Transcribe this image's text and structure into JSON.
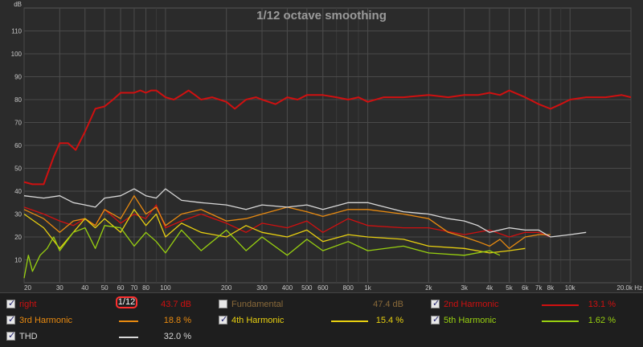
{
  "chart_data": {
    "type": "line",
    "title": "1/12 octave smoothing",
    "ylabel": "dB",
    "x_scale": "log",
    "xlim": [
      20,
      20000
    ],
    "ylim": [
      0,
      120
    ],
    "grid": true,
    "y_ticks": [
      "10",
      "20",
      "30",
      "40",
      "50",
      "60",
      "70",
      "80",
      "90",
      "100",
      "110"
    ],
    "x_ticks": [
      {
        "v": 20,
        "label": "20"
      },
      {
        "v": 30,
        "label": "30"
      },
      {
        "v": 40,
        "label": "40"
      },
      {
        "v": 50,
        "label": "50"
      },
      {
        "v": 60,
        "label": "60"
      },
      {
        "v": 70,
        "label": "70"
      },
      {
        "v": 80,
        "label": "80"
      },
      {
        "v": 100,
        "label": "100"
      },
      {
        "v": 200,
        "label": "200"
      },
      {
        "v": 300,
        "label": "300"
      },
      {
        "v": 400,
        "label": "400"
      },
      {
        "v": 500,
        "label": "500"
      },
      {
        "v": 600,
        "label": "600"
      },
      {
        "v": 800,
        "label": "800"
      },
      {
        "v": 1000,
        "label": "1k"
      },
      {
        "v": 2000,
        "label": "2k"
      },
      {
        "v": 3000,
        "label": "3k"
      },
      {
        "v": 4000,
        "label": "4k"
      },
      {
        "v": 5000,
        "label": "5k"
      },
      {
        "v": 6000,
        "label": "6k"
      },
      {
        "v": 7000,
        "label": "7k"
      },
      {
        "v": 8000,
        "label": "8k"
      },
      {
        "v": 10000,
        "label": "10k"
      },
      {
        "v": 20000,
        "label": "20.0k Hz"
      }
    ],
    "series": [
      {
        "name": "right",
        "color": "#d01010",
        "x": [
          20,
          22,
          25,
          28,
          30,
          33,
          36,
          40,
          45,
          50,
          55,
          60,
          66,
          70,
          75,
          80,
          85,
          90,
          100,
          110,
          120,
          130,
          140,
          150,
          170,
          200,
          220,
          250,
          280,
          300,
          350,
          400,
          450,
          500,
          600,
          700,
          800,
          900,
          1000,
          1200,
          1500,
          2000,
          2500,
          3000,
          3500,
          4000,
          4500,
          5000,
          6000,
          7000,
          8000,
          9000,
          10000,
          12000,
          15000,
          18000,
          20000
        ],
        "y": [
          44,
          43,
          43,
          55,
          61,
          61,
          58,
          66,
          76,
          77,
          80,
          83,
          83,
          83,
          84,
          83,
          84,
          84,
          81,
          80,
          82,
          84,
          82,
          80,
          81,
          79,
          76,
          80,
          81,
          80,
          78,
          81,
          80,
          82,
          82,
          81,
          80,
          81,
          79,
          81,
          81,
          82,
          81,
          82,
          82,
          83,
          82,
          84,
          81,
          78,
          76,
          78,
          80,
          81,
          81,
          82,
          81
        ]
      },
      {
        "name": "2nd Harmonic",
        "color": "#d01010",
        "x": [
          20,
          25,
          30,
          35,
          40,
          45,
          50,
          60,
          70,
          80,
          90,
          100,
          120,
          150,
          200,
          250,
          300,
          400,
          500,
          600,
          800,
          1000,
          1500,
          2000,
          3000,
          4000,
          5000,
          6000,
          7000,
          8000
        ],
        "y": [
          33,
          30,
          27,
          25,
          28,
          25,
          32,
          26,
          30,
          28,
          34,
          24,
          27,
          30,
          26,
          22,
          26,
          24,
          27,
          22,
          28,
          25,
          24,
          24,
          21,
          23,
          20,
          22,
          22,
          20
        ]
      },
      {
        "name": "3rd Harmonic",
        "color": "#e88a10",
        "x": [
          20,
          25,
          30,
          35,
          40,
          45,
          50,
          60,
          70,
          80,
          90,
          100,
          120,
          150,
          200,
          250,
          300,
          400,
          500,
          600,
          800,
          1000,
          1500,
          2000,
          2500,
          3000,
          3500,
          4000,
          4500,
          5000,
          6000,
          7000,
          8000
        ],
        "y": [
          32,
          28,
          22,
          27,
          28,
          25,
          32,
          28,
          38,
          30,
          33,
          25,
          30,
          32,
          27,
          28,
          30,
          33,
          31,
          29,
          32,
          32,
          30,
          28,
          22,
          20,
          18,
          16,
          19,
          15,
          20,
          21,
          21
        ]
      },
      {
        "name": "4th Harmonic",
        "color": "#e8d010",
        "x": [
          20,
          25,
          30,
          35,
          40,
          45,
          50,
          60,
          70,
          80,
          90,
          100,
          120,
          150,
          200,
          250,
          300,
          400,
          500,
          600,
          800,
          1000,
          1500,
          2000,
          3000,
          4000,
          5000,
          6000
        ],
        "y": [
          30,
          24,
          15,
          22,
          28,
          24,
          28,
          22,
          32,
          25,
          30,
          20,
          26,
          22,
          20,
          25,
          22,
          20,
          23,
          18,
          21,
          20,
          19,
          16,
          15,
          13,
          14,
          15
        ]
      },
      {
        "name": "5th Harmonic",
        "color": "#98d010",
        "x": [
          20,
          21,
          22,
          24,
          26,
          28,
          30,
          35,
          40,
          45,
          50,
          60,
          70,
          80,
          90,
          100,
          120,
          150,
          200,
          250,
          300,
          400,
          500,
          600,
          800,
          1000,
          1500,
          2000,
          3000,
          4000,
          4500
        ],
        "y": [
          2,
          12,
          5,
          12,
          15,
          20,
          14,
          22,
          24,
          15,
          25,
          24,
          16,
          22,
          18,
          13,
          23,
          14,
          23,
          14,
          20,
          12,
          19,
          14,
          18,
          14,
          16,
          13,
          12,
          14,
          12
        ]
      },
      {
        "name": "THD",
        "color": "#d8d8d8",
        "x": [
          20,
          25,
          30,
          35,
          40,
          45,
          50,
          60,
          70,
          80,
          90,
          100,
          120,
          150,
          200,
          250,
          300,
          400,
          500,
          600,
          800,
          1000,
          1500,
          2000,
          2500,
          3000,
          3500,
          4000,
          5000,
          6000,
          7000,
          8000,
          10000,
          12000
        ],
        "y": [
          38,
          37,
          38,
          35,
          34,
          33,
          37,
          38,
          41,
          38,
          37,
          41,
          36,
          35,
          34,
          32,
          34,
          33,
          34,
          32,
          35,
          35,
          31,
          30,
          28,
          27,
          25,
          22,
          24,
          23,
          23,
          20,
          21,
          22
        ]
      }
    ]
  },
  "legend": {
    "smoothing_label": "1/12",
    "items": [
      {
        "id": "right",
        "label": "right",
        "value": "43.7 dB",
        "checked": true,
        "color": "#d01010"
      },
      {
        "id": "fundamental",
        "label": "Fundamental",
        "value": "47.4 dB",
        "checked": false,
        "color": "#8a6a3a"
      },
      {
        "id": "h2",
        "label": "2nd Harmonic",
        "value": "13.1 %",
        "checked": true,
        "color": "#d01010"
      },
      {
        "id": "h3",
        "label": "3rd Harmonic",
        "value": "18.8 %",
        "checked": true,
        "color": "#e88a10"
      },
      {
        "id": "h4",
        "label": "4th Harmonic",
        "value": "15.4 %",
        "checked": true,
        "color": "#e8d010"
      },
      {
        "id": "h5",
        "label": "5th Harmonic",
        "value": "1.62 %",
        "checked": true,
        "color": "#98d010"
      },
      {
        "id": "thd",
        "label": "THD",
        "value": "32.0 %",
        "checked": true,
        "color": "#d8d8d8"
      }
    ]
  }
}
